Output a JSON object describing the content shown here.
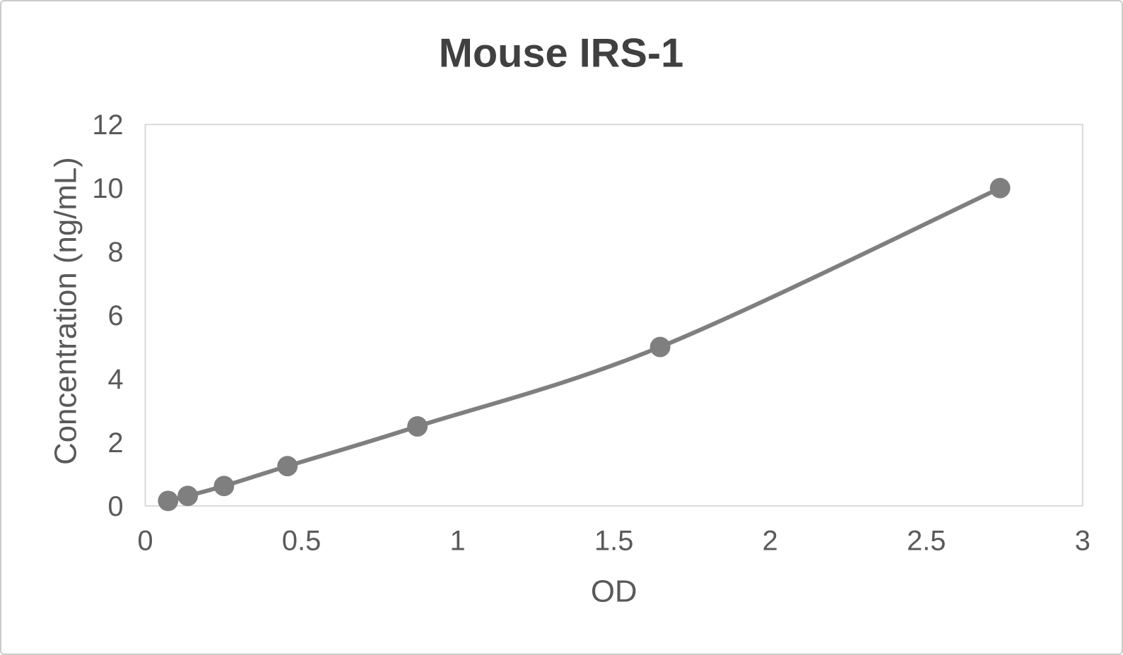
{
  "window": {
    "background_color": "#ffffff",
    "frame_border_color": "#cbcbcb"
  },
  "chart_data": {
    "type": "line",
    "title": "Mouse IRS-1",
    "xlabel": "OD",
    "ylabel": "Concentration (ng/mL)",
    "xlim": [
      0,
      3
    ],
    "ylim": [
      0,
      12
    ],
    "x_ticks": [
      0,
      0.5,
      1,
      1.5,
      2,
      2.5,
      3
    ],
    "x_tick_labels": [
      "0",
      "0.5",
      "1",
      "1.5",
      "2",
      "2.5",
      "3"
    ],
    "y_ticks": [
      0,
      2,
      4,
      6,
      8,
      10,
      12
    ],
    "y_tick_labels": [
      "0",
      "2",
      "4",
      "6",
      "8",
      "10",
      "12"
    ],
    "grid": false,
    "legend_position": "none",
    "line_style": "smooth",
    "marker": "circle",
    "series": [
      {
        "points": [
          {
            "x": 0.073,
            "y": 0.156
          },
          {
            "x": 0.136,
            "y": 0.313
          },
          {
            "x": 0.252,
            "y": 0.625
          },
          {
            "x": 0.455,
            "y": 1.25
          },
          {
            "x": 0.871,
            "y": 2.5
          },
          {
            "x": 1.648,
            "y": 5
          },
          {
            "x": 2.736,
            "y": 10
          }
        ]
      }
    ],
    "styles": {
      "title_color": "#404040",
      "axis_text_color": "#595959",
      "plot_border_color": "#d9d9d9",
      "line_color": "#7f7f7f",
      "marker_color": "#7f7f7f"
    }
  }
}
